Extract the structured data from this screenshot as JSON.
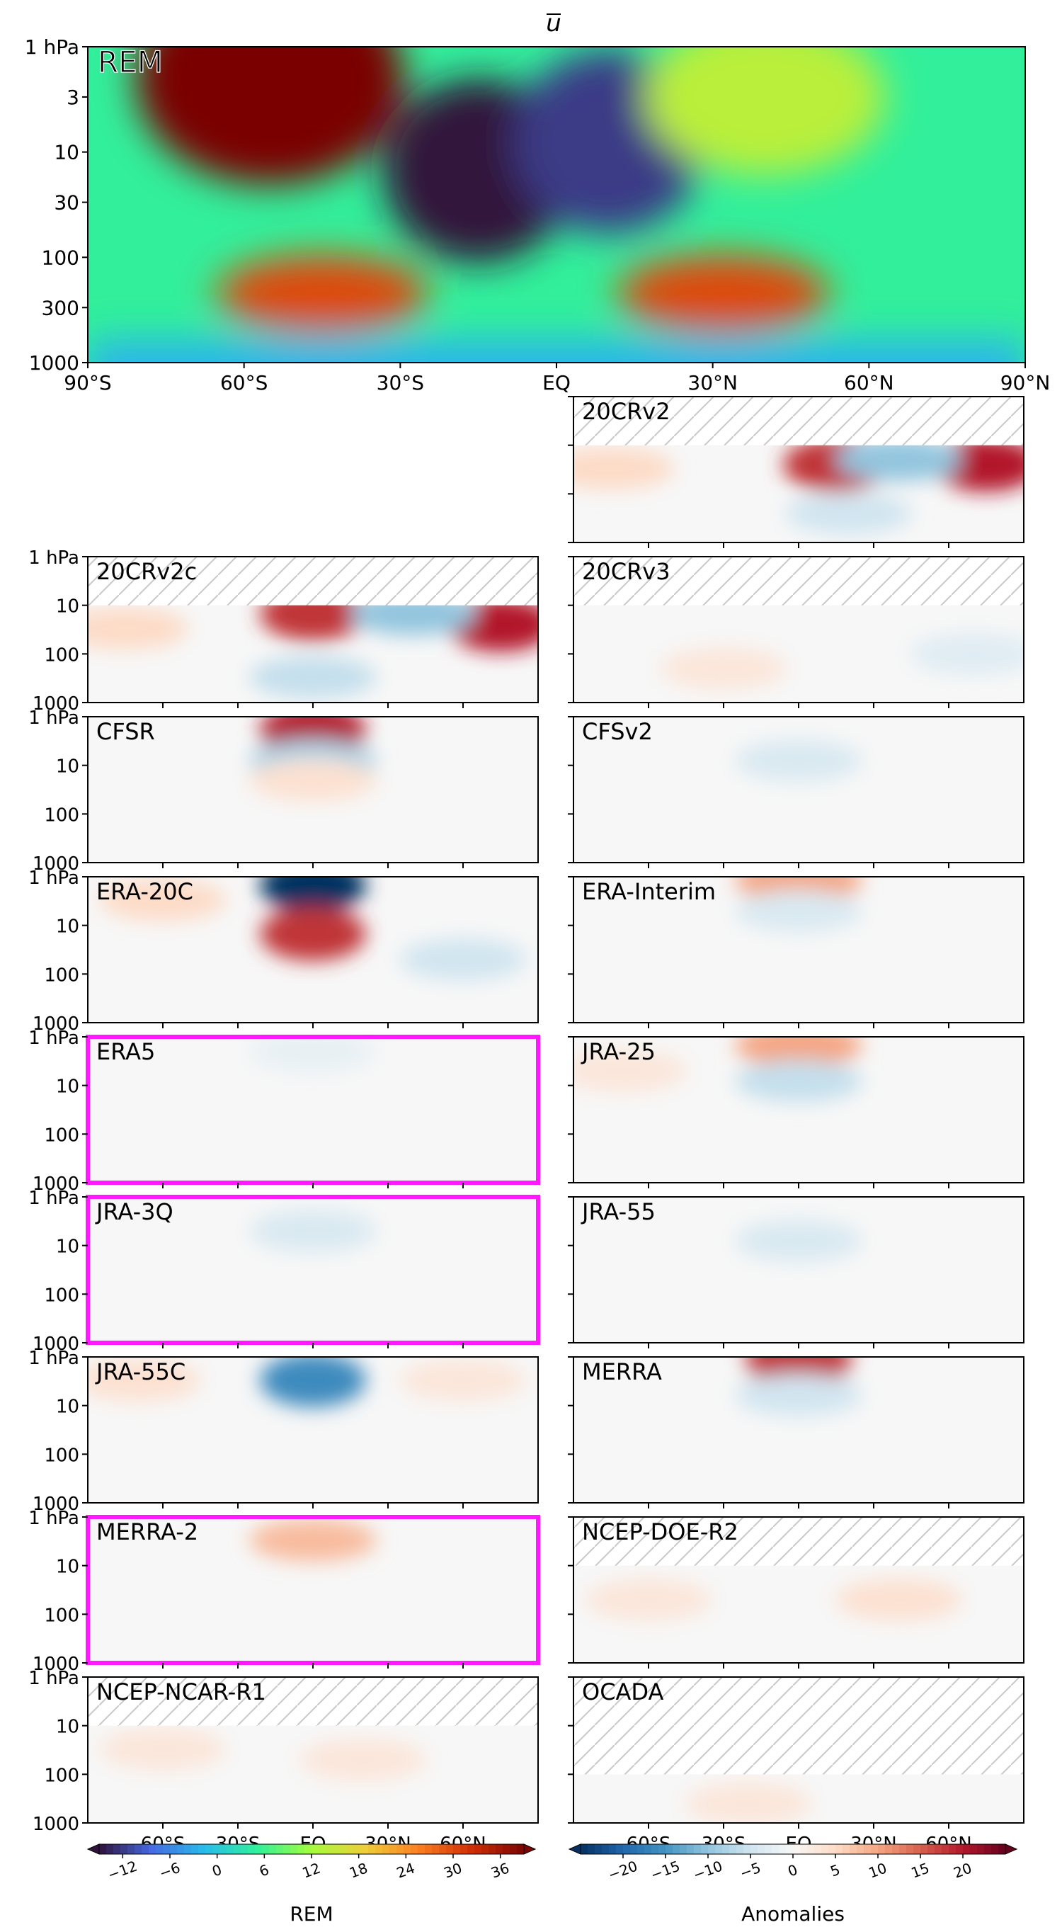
{
  "figure": {
    "title": "u",
    "colors": {
      "highlight": "#ff19ff",
      "hatch": "#c8c8c8",
      "frame": "#000000"
    }
  },
  "chart_data": [
    {
      "type": "heatmap",
      "name": "REM",
      "title": "u",
      "label": "REM",
      "colormap": "turbo",
      "x_ticks": [
        "90°S",
        "60°S",
        "30°S",
        "EQ",
        "30°N",
        "60°N",
        "90°N"
      ],
      "x_range": [
        -90,
        90
      ],
      "y_ticks": [
        "1 hPa",
        "3",
        "10",
        "30",
        "100",
        "300",
        "1000"
      ],
      "y_range_hPa": [
        1000,
        1
      ],
      "y_scale": "log",
      "features": [
        {
          "lat": -55,
          "p_hPa": 2,
          "value": 40
        },
        {
          "lat": -15,
          "p_hPa": 15,
          "value": -15
        },
        {
          "lat": 10,
          "p_hPa": 8,
          "value": -12
        },
        {
          "lat": -45,
          "p_hPa": 220,
          "value": 30
        },
        {
          "lat": 32,
          "p_hPa": 220,
          "value": 30
        },
        {
          "lat": 40,
          "p_hPa": 3,
          "value": 14
        }
      ]
    },
    {
      "type": "heatmap",
      "colormap": "RdBu_r",
      "x_ticks": [
        "60°S",
        "30°S",
        "EQ",
        "30°N",
        "60°N"
      ],
      "y_ticks": [
        "1 hPa",
        "10",
        "100",
        "1000"
      ],
      "panels": [
        {
          "label": "20CRv2",
          "highlight": false,
          "hatch_top_hPa": 10,
          "features": [
            {
              "lat": 15,
              "p_hPa": 25,
              "value": 18
            },
            {
              "lat": 75,
              "p_hPa": 25,
              "value": 20
            },
            {
              "lat": 40,
              "p_hPa": 20,
              "value": -10
            },
            {
              "lat": -75,
              "p_hPa": 30,
              "value": 5
            },
            {
              "lat": 20,
              "p_hPa": 250,
              "value": -5
            }
          ]
        },
        {
          "label": "20CRv2c",
          "highlight": false,
          "hatch_top_hPa": 10,
          "features": [
            {
              "lat": 0,
              "p_hPa": 15,
              "value": 18
            },
            {
              "lat": 75,
              "p_hPa": 25,
              "value": 20
            },
            {
              "lat": 40,
              "p_hPa": 15,
              "value": -10
            },
            {
              "lat": -75,
              "p_hPa": 30,
              "value": 5
            },
            {
              "lat": 0,
              "p_hPa": 300,
              "value": -6
            }
          ]
        },
        {
          "label": "20CRv3",
          "highlight": false,
          "hatch_top_hPa": 10,
          "features": [
            {
              "lat": -30,
              "p_hPa": 200,
              "value": 3
            },
            {
              "lat": 70,
              "p_hPa": 100,
              "value": -3
            }
          ]
        },
        {
          "label": "CFSR",
          "highlight": false,
          "hatch_top_hPa": null,
          "features": [
            {
              "lat": 0,
              "p_hPa": 2,
              "value": 20
            },
            {
              "lat": 0,
              "p_hPa": 8,
              "value": -8
            },
            {
              "lat": 0,
              "p_hPa": 20,
              "value": 4
            }
          ]
        },
        {
          "label": "CFSv2",
          "highlight": false,
          "hatch_top_hPa": null,
          "features": [
            {
              "lat": 0,
              "p_hPa": 8,
              "value": -4
            }
          ]
        },
        {
          "label": "ERA-20C",
          "highlight": false,
          "hatch_top_hPa": null,
          "features": [
            {
              "lat": 0,
              "p_hPa": 1.5,
              "value": -25
            },
            {
              "lat": 0,
              "p_hPa": 15,
              "value": 18
            },
            {
              "lat": 60,
              "p_hPa": 50,
              "value": -5
            },
            {
              "lat": -60,
              "p_hPa": 3,
              "value": 5
            }
          ]
        },
        {
          "label": "ERA-Interim",
          "highlight": false,
          "hatch_top_hPa": null,
          "features": [
            {
              "lat": 0,
              "p_hPa": 1.2,
              "value": 10
            },
            {
              "lat": 0,
              "p_hPa": 5,
              "value": -4
            }
          ]
        },
        {
          "label": "ERA5",
          "highlight": true,
          "hatch_top_hPa": null,
          "features": [
            {
              "lat": 0,
              "p_hPa": 2,
              "value": -2
            }
          ]
        },
        {
          "label": "JRA-25",
          "highlight": false,
          "hatch_top_hPa": null,
          "features": [
            {
              "lat": 0,
              "p_hPa": 1.5,
              "value": 10
            },
            {
              "lat": 0,
              "p_hPa": 8,
              "value": -6
            },
            {
              "lat": -70,
              "p_hPa": 5,
              "value": 3
            }
          ]
        },
        {
          "label": "JRA-3Q",
          "highlight": true,
          "hatch_top_hPa": null,
          "features": [
            {
              "lat": 0,
              "p_hPa": 5,
              "value": -4
            }
          ]
        },
        {
          "label": "JRA-55",
          "highlight": false,
          "hatch_top_hPa": null,
          "features": [
            {
              "lat": 0,
              "p_hPa": 8,
              "value": -4
            }
          ]
        },
        {
          "label": "JRA-55C",
          "highlight": false,
          "hatch_top_hPa": null,
          "features": [
            {
              "lat": 0,
              "p_hPa": 3,
              "value": -16
            },
            {
              "lat": -70,
              "p_hPa": 3,
              "value": 4
            },
            {
              "lat": 60,
              "p_hPa": 3,
              "value": 3
            }
          ]
        },
        {
          "label": "MERRA",
          "highlight": false,
          "hatch_top_hPa": null,
          "features": [
            {
              "lat": 0,
              "p_hPa": 1.2,
              "value": 18
            },
            {
              "lat": 0,
              "p_hPa": 6,
              "value": -5
            }
          ]
        },
        {
          "label": "MERRA-2",
          "highlight": true,
          "hatch_top_hPa": null,
          "features": [
            {
              "lat": 0,
              "p_hPa": 3,
              "value": 8
            }
          ]
        },
        {
          "label": "NCEP-DOE-R2",
          "highlight": false,
          "hatch_top_hPa": 10,
          "features": [
            {
              "lat": 40,
              "p_hPa": 50,
              "value": 4
            },
            {
              "lat": -60,
              "p_hPa": 50,
              "value": 3
            }
          ]
        },
        {
          "label": "NCEP-NCAR-R1",
          "highlight": false,
          "hatch_top_hPa": 10,
          "features": [
            {
              "lat": 20,
              "p_hPa": 50,
              "value": 3
            },
            {
              "lat": -60,
              "p_hPa": 30,
              "value": 3
            }
          ]
        },
        {
          "label": "OCADA",
          "highlight": false,
          "hatch_top_hPa": 100,
          "features": [
            {
              "lat": -20,
              "p_hPa": 400,
              "value": 3
            }
          ]
        }
      ]
    },
    {
      "type": "colorbar",
      "label": "REM",
      "colormap": "turbo",
      "ticks": [
        "−12",
        "−6",
        "0",
        "6",
        "12",
        "18",
        "24",
        "30",
        "36"
      ],
      "range": [
        -15,
        39
      ]
    },
    {
      "type": "colorbar",
      "label": "Anomalies",
      "colormap": "RdBu_r",
      "ticks": [
        "−20",
        "−15",
        "−10",
        "−5",
        "0",
        "5",
        "10",
        "15",
        "20"
      ],
      "range": [
        -25,
        25
      ]
    }
  ]
}
